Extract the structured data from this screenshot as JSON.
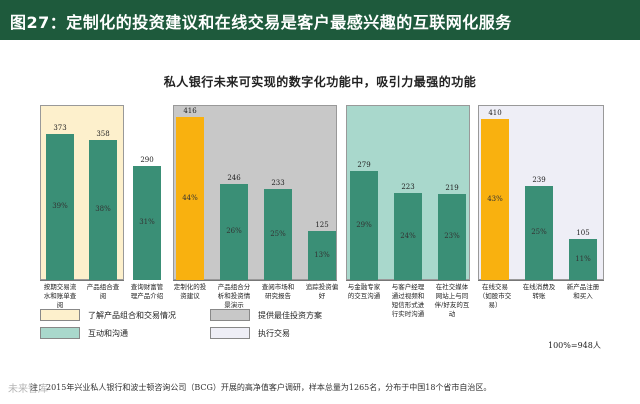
{
  "header": {
    "title": "图27：定制化的投资建议和在线交易是客户最感兴趣的互联网化服务"
  },
  "chart_data": {
    "type": "bar",
    "title": "私人银行未来可实现的数字化功能中，吸引力最强的功能",
    "ylim": [
      0,
      416
    ],
    "groups": [
      {
        "legend": "了解产品组合和交易情况",
        "color": "#fdf0cc",
        "bars": [
          {
            "label": "按期交易流水和账单查阅",
            "value": 373,
            "pct": "39%",
            "highlight": false
          },
          {
            "label": "产品组合查阅",
            "value": 358,
            "pct": "38%",
            "highlight": false
          },
          {
            "label": "查询财富管理产品介绍",
            "value": 290,
            "pct": "31%",
            "highlight": false
          }
        ]
      },
      {
        "legend": "提供最佳投资方案",
        "color": "#c8c8c8",
        "bars": [
          {
            "label": "定制化的投资建议",
            "value": 416,
            "pct": "44%",
            "highlight": true
          },
          {
            "label": "产品组合分析和投资情景演示",
            "value": 246,
            "pct": "26%",
            "highlight": false
          },
          {
            "label": "查阅市场和研究报告",
            "value": 233,
            "pct": "25%",
            "highlight": false
          },
          {
            "label": "追踪投资偏好",
            "value": 125,
            "pct": "13%",
            "highlight": false
          }
        ]
      },
      {
        "legend": "互动和沟通",
        "color": "#a9d8cc",
        "bars": [
          {
            "label": "与金融专家的交互沟通",
            "value": 279,
            "pct": "29%",
            "highlight": false
          },
          {
            "label": "与客户经理通过视频和短信形式进行实时沟通",
            "value": 223,
            "pct": "24%",
            "highlight": false
          },
          {
            "label": "在社交媒体网站上与同伴/好友的互动",
            "value": 219,
            "pct": "23%",
            "highlight": false
          }
        ]
      },
      {
        "legend": "执行交易",
        "color": "#eeeef6",
        "bars": [
          {
            "label": "在线交易（如股市交易）",
            "value": 410,
            "pct": "43%",
            "highlight": true
          },
          {
            "label": "在线消费及转账",
            "value": 239,
            "pct": "25%",
            "highlight": false
          },
          {
            "label": "新产品注册和买入",
            "value": 105,
            "pct": "11%",
            "highlight": false
          }
        ]
      }
    ],
    "total_note": "100%=948人",
    "source_note": "注：2015年兴业私人银行和波士顿咨询公司（BCG）开展的高净值客户调研，样本总量为1265名，分布于中国18个省市自治区。"
  },
  "watermark": "未来智库",
  "colors": {
    "bar": "#3a8f76",
    "highlight": "#f9b10f",
    "header": "#1e5a3c"
  }
}
